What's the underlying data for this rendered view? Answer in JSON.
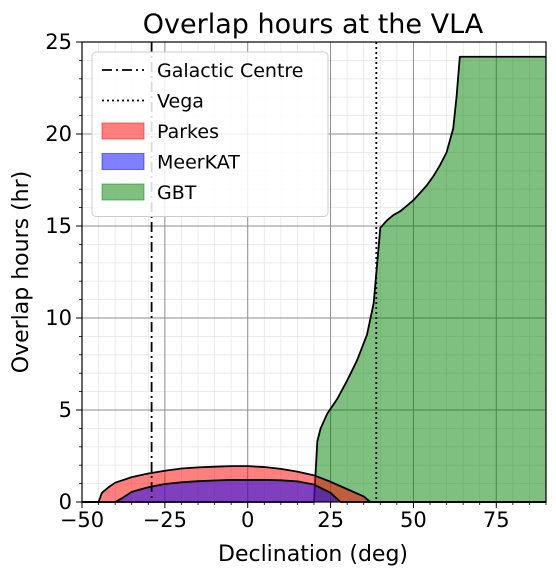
{
  "chart_data": {
    "type": "area",
    "title": "Overlap hours at the VLA",
    "xlabel": "Declination (deg)",
    "ylabel": "Overlap hours (hr)",
    "xlim": [
      -50,
      90
    ],
    "ylim": [
      0,
      25
    ],
    "xticks": [
      -50,
      -25,
      0,
      25,
      50,
      75
    ],
    "xtick_labels": [
      "−50",
      "−25",
      "0",
      "25",
      "50",
      "75"
    ],
    "yticks": [
      0,
      5,
      10,
      15,
      20,
      25
    ],
    "ytick_labels": [
      "0",
      "5",
      "10",
      "15",
      "20",
      "25"
    ],
    "grid": true,
    "minor_grid": true,
    "legend_position": "top-left",
    "vlines": [
      {
        "name": "Galactic Centre",
        "x": -29.0,
        "style": "dashdot"
      },
      {
        "name": "Vega",
        "x": 38.8,
        "style": "dotted"
      }
    ],
    "series": [
      {
        "name": "Parkes",
        "color": "#ff0000",
        "x": [
          -50,
          -45,
          -44,
          -42,
          -40,
          -35,
          -30,
          -25,
          -20,
          -15,
          -10,
          -5,
          0,
          5,
          10,
          15,
          20,
          25,
          30,
          35,
          37,
          90
        ],
        "values": [
          0,
          0,
          0.5,
          0.8,
          1.05,
          1.35,
          1.55,
          1.7,
          1.82,
          1.88,
          1.92,
          1.95,
          1.95,
          1.9,
          1.8,
          1.65,
          1.45,
          1.1,
          0.7,
          0.3,
          0,
          0
        ]
      },
      {
        "name": "MeerKAT",
        "color": "#0000ff",
        "x": [
          -50,
          -40,
          -38,
          -35,
          -30,
          -25,
          -20,
          -15,
          -10,
          -5,
          0,
          5,
          10,
          15,
          20,
          25,
          28,
          90
        ],
        "values": [
          0,
          0,
          0.2,
          0.55,
          0.8,
          0.98,
          1.07,
          1.13,
          1.17,
          1.2,
          1.2,
          1.2,
          1.18,
          1.12,
          0.95,
          0.5,
          0,
          0
        ]
      },
      {
        "name": "GBT",
        "color": "#008000",
        "x": [
          -50,
          20,
          21,
          22,
          24,
          27,
          30,
          33,
          36,
          38,
          40,
          42,
          44,
          46,
          48,
          50,
          52,
          54,
          56,
          58,
          60,
          62,
          63,
          64,
          65,
          70,
          75,
          80,
          85,
          90
        ],
        "values": [
          0,
          0,
          3.3,
          4.0,
          4.8,
          5.6,
          6.6,
          7.7,
          9.1,
          10.8,
          14.9,
          15.3,
          15.6,
          15.8,
          16.1,
          16.4,
          16.8,
          17.2,
          17.7,
          18.3,
          19.0,
          20.3,
          22.0,
          24.2,
          24.2,
          24.2,
          24.2,
          24.2,
          24.2,
          24.2
        ]
      }
    ]
  }
}
